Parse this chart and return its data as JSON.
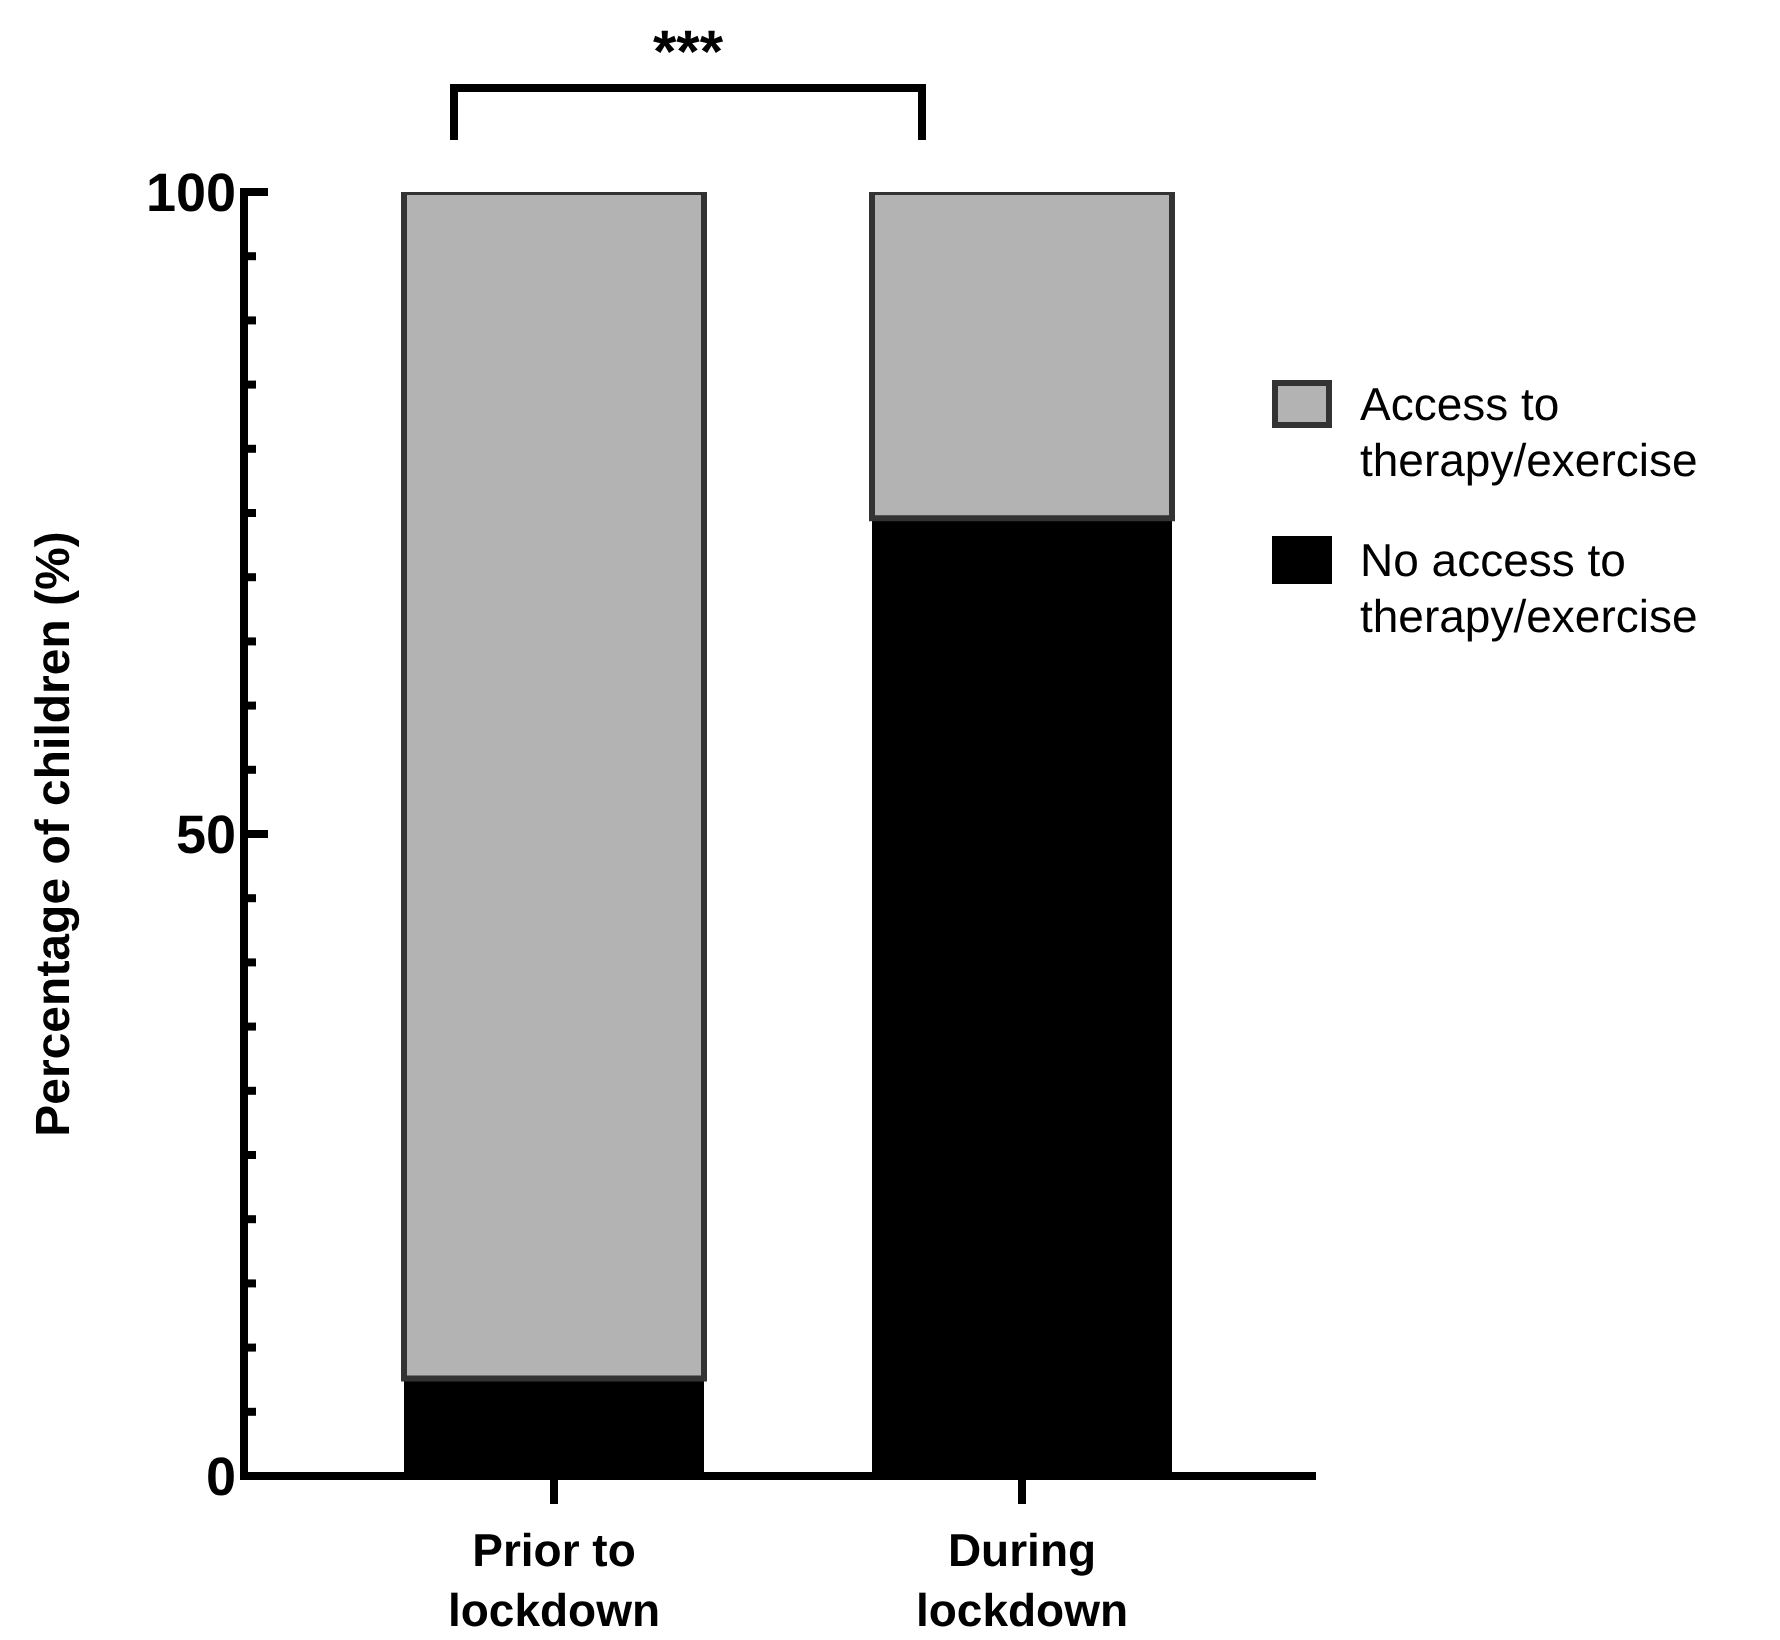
{
  "chart_data": {
    "type": "bar",
    "stacked": true,
    "categories": [
      "Prior to lockdown",
      "During lockdown"
    ],
    "series": [
      {
        "name": "No access to therapy/exercise",
        "color": "#000000",
        "values": [
          7.6,
          74.6
        ]
      },
      {
        "name": "Access to therapy/exercise",
        "color": "#b3b3b3",
        "values": [
          92.4,
          25.4
        ]
      }
    ],
    "ylabel": "Percentage of children (%)",
    "ylim": [
      0,
      100
    ],
    "yticks": [
      0,
      {
        "value": 5,
        "label": null
      },
      {
        "value": 10,
        "label": null
      },
      {
        "value": 15,
        "label": null
      },
      {
        "value": 20,
        "label": null
      },
      {
        "value": 25,
        "label": null
      },
      {
        "value": 30,
        "label": null
      },
      {
        "value": 35,
        "label": null
      },
      {
        "value": 40,
        "label": null
      },
      {
        "value": 45,
        "label": null
      },
      50,
      {
        "value": 55,
        "label": null
      },
      {
        "value": 60,
        "label": null
      },
      {
        "value": 65,
        "label": null
      },
      {
        "value": 70,
        "label": null
      },
      {
        "value": 75,
        "label": null
      },
      {
        "value": 80,
        "label": null
      },
      {
        "value": 85,
        "label": null
      },
      {
        "value": 90,
        "label": null
      },
      {
        "value": 95,
        "label": null
      },
      100
    ],
    "annotations": [
      "***"
    ],
    "legend": "right",
    "grid": false
  }
}
